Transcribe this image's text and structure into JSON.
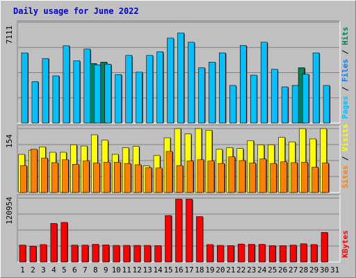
{
  "chart_data": {
    "type": "bar",
    "title": "Daily usage for June 2022",
    "categories": [
      "1",
      "2",
      "3",
      "4",
      "5",
      "6",
      "7",
      "8",
      "9",
      "10",
      "11",
      "12",
      "13",
      "14",
      "15",
      "16",
      "17",
      "18",
      "19",
      "20",
      "21",
      "22",
      "23",
      "24",
      "25",
      "26",
      "27",
      "28",
      "29",
      "30",
      "31"
    ],
    "weekend_days": [
      "4",
      "5",
      "11",
      "12",
      "18",
      "19",
      "25",
      "26"
    ],
    "panels": [
      {
        "id": "top",
        "ymax_label": "7111",
        "ymax": 7111,
        "series": [
          {
            "name": "Hits",
            "color": "#00805c",
            "values": [
              null,
              null,
              null,
              null,
              null,
              null,
              null,
              4200,
              4300,
              null,
              null,
              null,
              null,
              null,
              null,
              null,
              null,
              null,
              null,
              null,
              null,
              null,
              null,
              null,
              null,
              null,
              null,
              3900,
              null,
              null,
              null
            ]
          },
          {
            "name": "Files",
            "color": "#0080ff",
            "values": [
              null,
              null,
              null,
              null,
              null,
              null,
              null,
              null,
              null,
              null,
              null,
              null,
              null,
              null,
              null,
              null,
              null,
              null,
              null,
              null,
              null,
              null,
              null,
              null,
              null,
              null,
              null,
              null,
              null,
              null,
              null
            ]
          },
          {
            "name": "Pages",
            "color": "#00c0ff",
            "values": [
              4950,
              2920,
              4550,
              3330,
              5450,
              4390,
              5220,
              4110,
              4150,
              3420,
              4770,
              3590,
              4770,
              5030,
              5990,
              6350,
              5700,
              3900,
              4300,
              4950,
              2650,
              5470,
              3380,
              5700,
              3790,
              2550,
              2650,
              3440,
              4950,
              2650,
              null
            ]
          }
        ]
      },
      {
        "id": "middle",
        "ymax_label": "154",
        "ymax": 154,
        "series": [
          {
            "name": "Visits",
            "color": "#ffff00",
            "values": [
              92,
              102,
              110,
              97,
              97,
              115,
              112,
              139,
              126,
              92,
              108,
              111,
              64,
              89,
              132,
              154,
              141,
              154,
              150,
              104,
              108,
              106,
              125,
              115,
              115,
              133,
              122,
              154,
              129,
              154,
              null
            ]
          },
          {
            "name": "Sites",
            "color": "#ff8000",
            "values": [
              65,
              104,
              83,
              72,
              79,
              68,
              76,
              71,
              73,
              73,
              70,
              67,
              60,
              59,
              99,
              65,
              76,
              79,
              76,
              70,
              86,
              77,
              71,
              81,
              70,
              74,
              72,
              73,
              61,
              71,
              null
            ]
          }
        ]
      },
      {
        "id": "bottom",
        "ymax_label": "120954",
        "ymax": 120954,
        "series": [
          {
            "name": "KBytes",
            "color": "#ff0000",
            "values": [
              32000,
              30000,
              33000,
              73000,
              75000,
              32000,
              32000,
              33500,
              32500,
              31500,
              31500,
              31500,
              31500,
              31000,
              88000,
              119000,
              119000,
              86000,
              33000,
              31500,
              31000,
              34000,
              33500,
              33500,
              31000,
              31000,
              32000,
              34500,
              33000,
              56000,
              null
            ]
          }
        ]
      }
    ],
    "axis_labels": {
      "top": [
        {
          "text": "Pages",
          "color": "#00c0ff"
        },
        {
          "text": " / ",
          "color": "#000000"
        },
        {
          "text": "Files",
          "color": "#0080ff"
        },
        {
          "text": " / ",
          "color": "#000000"
        },
        {
          "text": "Hits",
          "color": "#00805c"
        }
      ],
      "middle": [
        {
          "text": "Sites",
          "color": "#ff8000"
        },
        {
          "text": " / ",
          "color": "#000000"
        },
        {
          "text": "Visits",
          "color": "#ffff00"
        }
      ],
      "bottom": [
        {
          "text": "KBytes",
          "color": "#ff0000"
        }
      ]
    },
    "weekday_color": "#000000",
    "weekend_color": "#00805c",
    "grid": true
  }
}
